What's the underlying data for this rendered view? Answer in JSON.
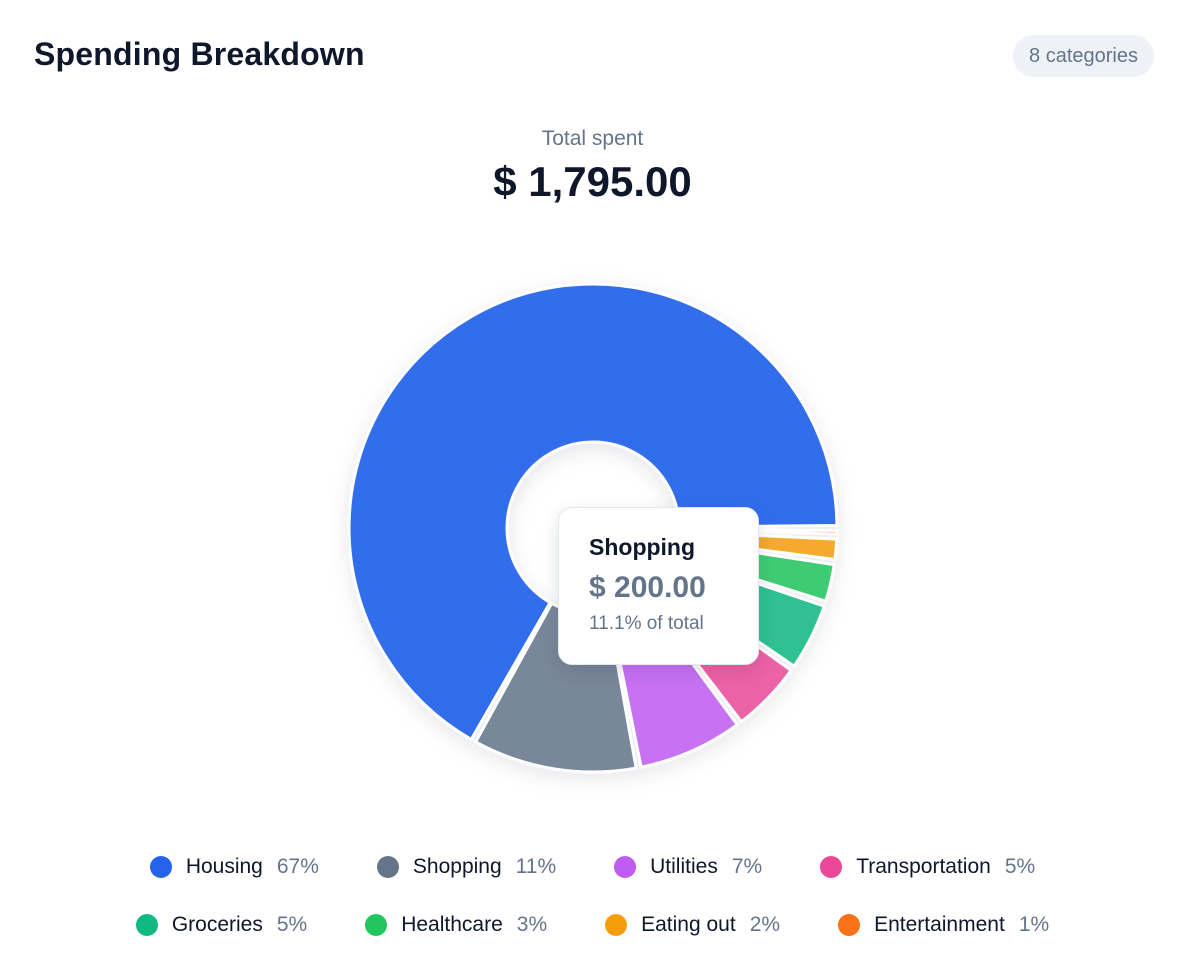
{
  "header": {
    "title": "Spending Breakdown",
    "badge": "8 categories"
  },
  "summary": {
    "label": "Total spent",
    "value": "$ 1,795.00"
  },
  "tooltip": {
    "category": "Shopping",
    "amount": "$ 200.00",
    "share": "11.1% of total"
  },
  "legend_rows": [
    [
      {
        "name": "Housing",
        "pct": "67%",
        "color": "#2563eb"
      },
      {
        "name": "Shopping",
        "pct": "11%",
        "color": "#64748b"
      },
      {
        "name": "Utilities",
        "pct": "7%",
        "color": "#c05cf2"
      },
      {
        "name": "Transportation",
        "pct": "5%",
        "color": "#ec4899"
      }
    ],
    [
      {
        "name": "Groceries",
        "pct": "5%",
        "color": "#10b981"
      },
      {
        "name": "Healthcare",
        "pct": "3%",
        "color": "#22c55e"
      },
      {
        "name": "Eating out",
        "pct": "2%",
        "color": "#f59e0b"
      },
      {
        "name": "Entertainment",
        "pct": "1%",
        "color": "#f97316"
      }
    ]
  ],
  "chart_data": {
    "type": "pie",
    "variant": "donut",
    "total": 1795.0,
    "highlighted": "Shopping",
    "categories": [
      "Housing",
      "Shopping",
      "Utilities",
      "Transportation",
      "Groceries",
      "Healthcare",
      "Eating out",
      "Entertainment"
    ],
    "values": [
      1200,
      200,
      130,
      90,
      85,
      50,
      30,
      10
    ],
    "percent_labels": [
      "67%",
      "11%",
      "7%",
      "5%",
      "5%",
      "3%",
      "2%",
      "1%"
    ],
    "colors": [
      "#2563eb",
      "#64748b",
      "#c05cf2",
      "#ec4899",
      "#10b981",
      "#22c55e",
      "#f59e0b",
      "#f97316"
    ],
    "legend_position": "bottom"
  }
}
